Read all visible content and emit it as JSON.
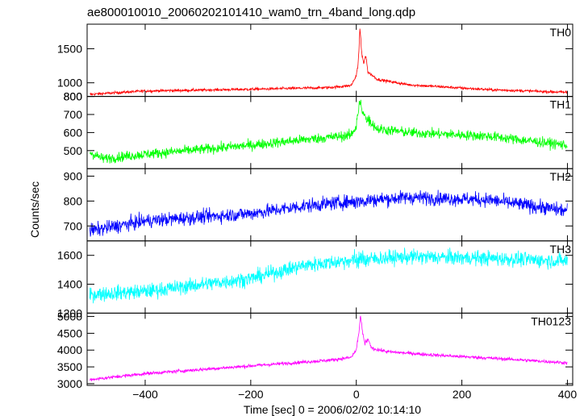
{
  "chart_data": {
    "type": "line",
    "title": "ae800010010_20060202101410_wam0_trn_4band_long.qdp",
    "xlabel": "Time [sec] 0 = 2006/02/02 10:14:10",
    "ylabel": "Counts/sec",
    "xlim": [
      -510,
      410
    ],
    "xticks": [
      -400,
      -200,
      0,
      200,
      400
    ],
    "x_tick_labels": [
      "−400",
      "−200",
      "0",
      "200",
      "400"
    ],
    "grid": false,
    "panels": [
      {
        "name": "TH0",
        "color": "#ff0000",
        "ylim": [
          800,
          1860
        ],
        "yticks": [
          800,
          1000,
          1500
        ],
        "ytick_labels": [
          "800",
          "1000",
          "1500"
        ],
        "noise": 22,
        "trend": [
          [
            -505,
            830
          ],
          [
            -400,
            880
          ],
          [
            -200,
            905
          ],
          [
            -50,
            930
          ],
          [
            -10,
            960
          ],
          [
            0,
            1100
          ],
          [
            4,
            1320
          ],
          [
            7,
            1820
          ],
          [
            10,
            1450
          ],
          [
            14,
            1280
          ],
          [
            18,
            1400
          ],
          [
            22,
            1160
          ],
          [
            40,
            1050
          ],
          [
            100,
            970
          ],
          [
            250,
            900
          ],
          [
            400,
            860
          ]
        ]
      },
      {
        "name": "TH1",
        "color": "#00ff00",
        "ylim": [
          400,
          800
        ],
        "yticks": [
          500,
          600,
          700,
          800
        ],
        "ytick_labels": [
          "500",
          "600",
          "700",
          "800"
        ],
        "noise": 30,
        "trend": [
          [
            -505,
            490
          ],
          [
            -480,
            455
          ],
          [
            -400,
            480
          ],
          [
            -200,
            530
          ],
          [
            -100,
            560
          ],
          [
            -10,
            585
          ],
          [
            0,
            640
          ],
          [
            7,
            780
          ],
          [
            12,
            700
          ],
          [
            20,
            680
          ],
          [
            40,
            620
          ],
          [
            100,
            600
          ],
          [
            250,
            580
          ],
          [
            400,
            530
          ]
        ]
      },
      {
        "name": "TH2",
        "color": "#0000ff",
        "ylim": [
          640,
          930
        ],
        "yticks": [
          700,
          800,
          900
        ],
        "ytick_labels": [
          "700",
          "800",
          "900"
        ],
        "noise": 30,
        "trend": [
          [
            -505,
            680
          ],
          [
            -400,
            720
          ],
          [
            -200,
            750
          ],
          [
            -100,
            780
          ],
          [
            0,
            800
          ],
          [
            100,
            815
          ],
          [
            250,
            805
          ],
          [
            400,
            760
          ]
        ]
      },
      {
        "name": "TH3",
        "color": "#00ffff",
        "ylim": [
          1200,
          1700
        ],
        "yticks": [
          1200,
          1400,
          1600
        ],
        "ytick_labels": [
          "1200",
          "1400",
          "1600"
        ],
        "noise": 55,
        "trend": [
          [
            -505,
            1330
          ],
          [
            -400,
            1350
          ],
          [
            -200,
            1440
          ],
          [
            -100,
            1530
          ],
          [
            0,
            1570
          ],
          [
            100,
            1590
          ],
          [
            250,
            1580
          ],
          [
            400,
            1560
          ]
        ]
      },
      {
        "name": "TH0123",
        "color": "#ff00ff",
        "ylim": [
          2950,
          5100
        ],
        "yticks": [
          3000,
          3500,
          4000,
          4500,
          5000
        ],
        "ytick_labels": [
          "3000",
          "3500",
          "4000",
          "4500",
          "5000"
        ],
        "noise": 55,
        "trend": [
          [
            -505,
            3120
          ],
          [
            -400,
            3300
          ],
          [
            -200,
            3530
          ],
          [
            -50,
            3700
          ],
          [
            -10,
            3780
          ],
          [
            0,
            4000
          ],
          [
            5,
            4500
          ],
          [
            8,
            5050
          ],
          [
            12,
            4500
          ],
          [
            16,
            4200
          ],
          [
            22,
            4300
          ],
          [
            30,
            4050
          ],
          [
            60,
            3950
          ],
          [
            150,
            3850
          ],
          [
            300,
            3720
          ],
          [
            400,
            3620
          ]
        ]
      }
    ]
  }
}
